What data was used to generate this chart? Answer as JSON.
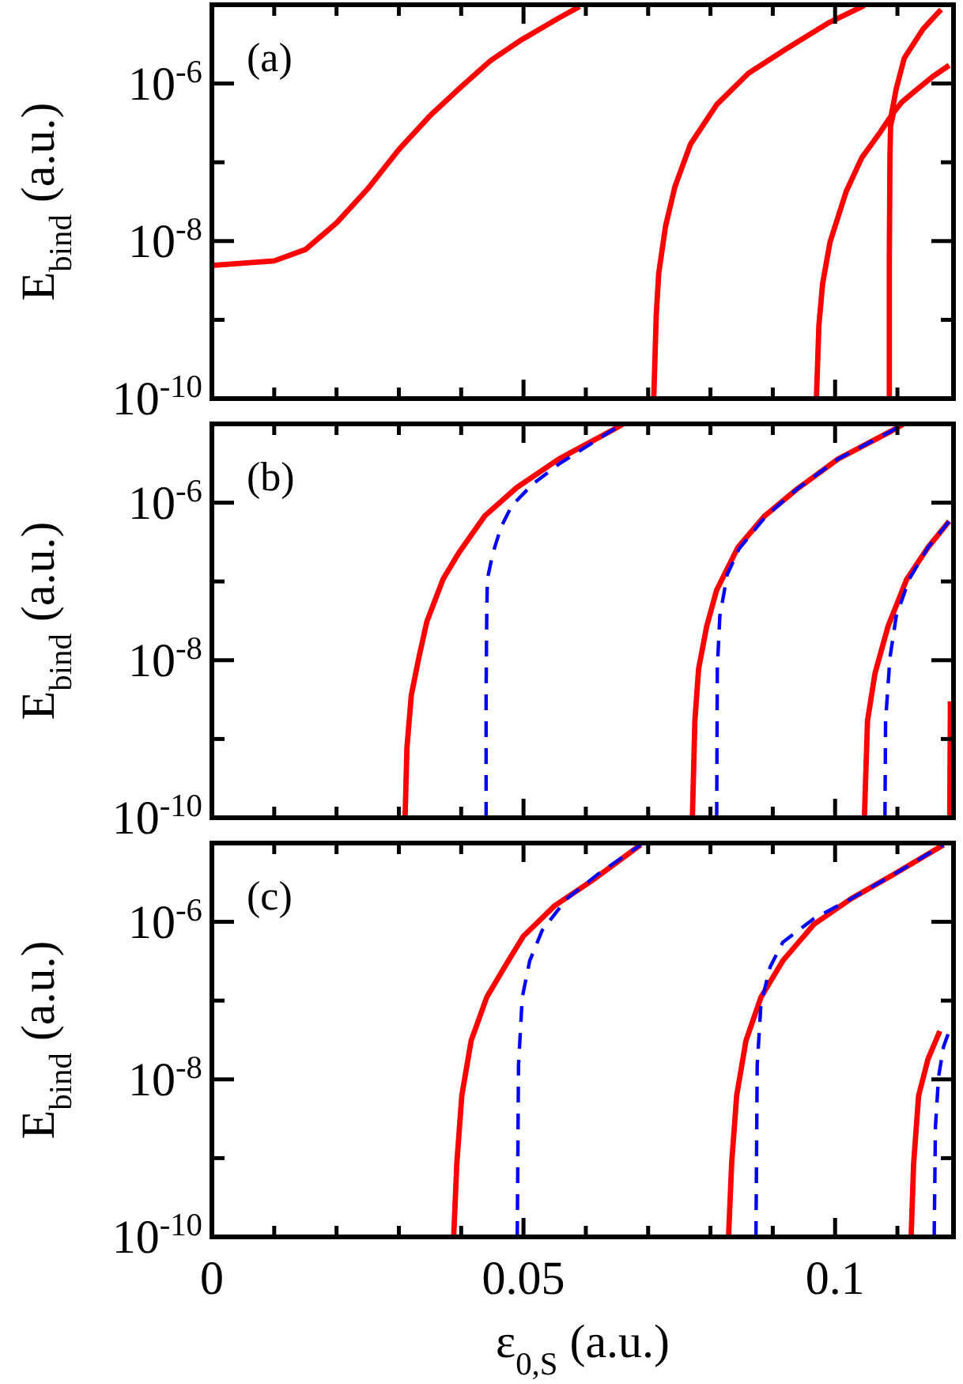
{
  "chart_data": [
    {
      "type": "line",
      "ylabel": "E$_{bind}$ (a.u.)",
      "annotations": [
        "(a)"
      ],
      "log": true,
      "tick_labels": "y",
      "xlim": [
        0,
        0.119
      ],
      "ylim": [
        1e-10,
        1e-05
      ],
      "xticks": [
        0,
        {
          "value": 0.01,
          "label": null
        },
        {
          "value": 0.02,
          "label": null
        },
        {
          "value": 0.03,
          "label": null
        },
        {
          "value": 0.04,
          "label": null
        },
        0.05,
        {
          "value": 0.06,
          "label": null
        },
        {
          "value": 0.07,
          "label": null
        },
        {
          "value": 0.08,
          "label": null
        },
        {
          "value": 0.09,
          "label": null
        },
        0.1,
        {
          "value": 0.11,
          "label": null
        }
      ],
      "yticks": [
        {
          "value": 1e-10,
          "label": "10$^{-10}$"
        },
        {
          "value": 1e-09,
          "label": null
        },
        {
          "value": 1e-08,
          "label": "10$^{-8}$"
        },
        {
          "value": 1e-07,
          "label": null
        },
        {
          "value": 1e-06,
          "label": "10$^{-6}$"
        },
        {
          "value": 1e-05,
          "label": null
        }
      ],
      "series": [
        {
          "color": "#ff0000",
          "line_style": "solid",
          "x": [
            0,
            0.01,
            0.015,
            0.02,
            0.025,
            0.03,
            0.035,
            0.04,
            0.0447,
            0.0497,
            0.0557,
            0.059
          ],
          "values": [
            4.9e-09,
            5.6e-09,
            7.8e-09,
            1.7e-08,
            4.6e-08,
            1.45e-07,
            3.9e-07,
            9.1e-07,
            1.95e-06,
            3.6e-06,
            6.8e-06,
            9.5e-06
          ]
        },
        {
          "color": "#ff0000",
          "line_style": "solid",
          "x": [
            0.0709,
            0.0713,
            0.0717,
            0.0728,
            0.0743,
            0.0768,
            0.081,
            0.0861,
            0.092,
            0.0988,
            0.1047
          ],
          "values": [
            1e-10,
            1.15e-09,
            3.9e-09,
            1.55e-08,
            4.9e-08,
            1.7e-07,
            5.4e-07,
            1.35e-06,
            2.7e-06,
            5.8e-06,
            9.8e-06
          ]
        },
        {
          "color": "#ff0000",
          "line_style": "solid",
          "x": [
            0.097,
            0.0974,
            0.098,
            0.0992,
            0.1018,
            0.1043,
            0.1073,
            0.109,
            0.1098,
            0.1111,
            0.1141,
            0.117
          ],
          "values": [
            1e-10,
            8.5e-10,
            2.9e-09,
            9.8e-09,
            4.3e-08,
            1.15e-07,
            2.45e-07,
            3.9e-07,
            8.5e-07,
            2.1e-06,
            4.9e-06,
            8.7e-06
          ]
        },
        {
          "color": "#ff0000",
          "line_style": "solid",
          "x": [
            0.1087,
            0.1087,
            0.1088,
            0.1089,
            0.1094,
            0.1107,
            0.1132,
            0.1157,
            0.1183
          ],
          "values": [
            1e-10,
            5.4e-09,
            1.15e-07,
            2.9e-07,
            4.3e-07,
            5.8e-07,
            8.5e-07,
            1.23e-06,
            1.7e-06
          ]
        }
      ]
    },
    {
      "type": "line",
      "ylabel": "E$_{bind}$ (a.u.)",
      "annotations": [
        "(b)"
      ],
      "log": true,
      "tick_labels": "y",
      "xlim": [
        0,
        0.119
      ],
      "ylim": [
        1e-10,
        1e-05
      ],
      "xticks": [
        0,
        {
          "value": 0.01,
          "label": null
        },
        {
          "value": 0.02,
          "label": null
        },
        {
          "value": 0.03,
          "label": null
        },
        {
          "value": 0.04,
          "label": null
        },
        0.05,
        {
          "value": 0.06,
          "label": null
        },
        {
          "value": 0.07,
          "label": null
        },
        {
          "value": 0.08,
          "label": null
        },
        {
          "value": 0.09,
          "label": null
        },
        0.1,
        {
          "value": 0.11,
          "label": null
        }
      ],
      "yticks": [
        {
          "value": 1e-10,
          "label": "10$^{-10}$"
        },
        {
          "value": 1e-09,
          "label": null
        },
        {
          "value": 1e-08,
          "label": "10$^{-8}$"
        },
        {
          "value": 1e-07,
          "label": null
        },
        {
          "value": 1e-06,
          "label": "10$^{-6}$"
        },
        {
          "value": 1e-05,
          "label": null
        }
      ],
      "series": [
        {
          "color": "#ff0000",
          "line_style": "solid",
          "x": [
            0.031,
            0.0313,
            0.032,
            0.0332,
            0.0345,
            0.0371,
            0.0396,
            0.0438,
            0.0489,
            0.0557,
            0.064,
            0.066
          ],
          "values": [
            1e-10,
            7.8e-10,
            3.6e-09,
            1.07e-08,
            3.1e-08,
            1.07e-07,
            2.3e-07,
            6.8e-07,
            1.55e-06,
            3.6e-06,
            8.1e-06,
            1e-05
          ]
        },
        {
          "color": "#0000ff",
          "line_style": "dashed",
          "x": [
            0.044,
            0.044,
            0.0441,
            0.0442,
            0.0451,
            0.0464,
            0.0481,
            0.0514,
            0.0557,
            0.064,
            0.066
          ],
          "values": [
            1e-10,
            3.6e-09,
            3.6e-08,
            1.07e-07,
            2.3e-07,
            4.9e-07,
            9.1e-07,
            1.7e-06,
            3.1e-06,
            8.1e-06,
            1e-05
          ]
        },
        {
          "color": "#ff0000",
          "line_style": "solid",
          "x": [
            0.0771,
            0.0775,
            0.0781,
            0.0794,
            0.081,
            0.0844,
            0.0887,
            0.0937,
            0.1005,
            0.109,
            0.111
          ],
          "values": [
            1e-10,
            1.7e-09,
            7.8e-09,
            2.7e-08,
            7.8e-08,
            2.7e-07,
            6.8e-07,
            1.45e-06,
            3.6e-06,
            8.1e-06,
            1e-05
          ]
        },
        {
          "color": "#0000ff",
          "line_style": "dashed",
          "x": [
            0.081,
            0.0811,
            0.0815,
            0.0827,
            0.0846,
            0.0888,
            0.0937,
            0.1005,
            0.109,
            0.111
          ],
          "values": [
            1e-10,
            7.8e-09,
            3.6e-08,
            1.23e-07,
            2.6e-07,
            6.6e-07,
            1.45e-06,
            3.6e-06,
            8.1e-06,
            1e-05
          ]
        },
        {
          "color": "#ff0000",
          "line_style": "solid",
          "x": [
            0.1047,
            0.1052,
            0.1064,
            0.1085,
            0.1115,
            0.1149,
            0.1183
          ],
          "values": [
            1e-10,
            1.7e-09,
            6.8e-09,
            2.7e-08,
            1.07e-07,
            2.7e-07,
            5.8e-07
          ]
        },
        {
          "color": "#0000ff",
          "line_style": "dashed",
          "x": [
            0.108,
            0.1081,
            0.1088,
            0.1098,
            0.1119,
            0.1149,
            0.1183
          ],
          "values": [
            1e-10,
            1.7e-09,
            1.07e-08,
            3.6e-08,
            1.07e-07,
            2.7e-07,
            5.8e-07
          ]
        },
        {
          "color": "#ff0000",
          "line_style": "solid",
          "x": [
            0.1184,
            0.1185
          ],
          "values": [
            1e-10,
            3e-09
          ]
        }
      ]
    },
    {
      "type": "line",
      "ylabel": "E$_{bind}$ (a.u.)",
      "xlabel": "ε$_{0,S}$ (a.u.)",
      "annotations": [
        "(c)"
      ],
      "log": true,
      "xlim": [
        0,
        0.119
      ],
      "ylim": [
        1e-10,
        1e-05
      ],
      "xticks": [
        0,
        {
          "value": 0.01,
          "label": null
        },
        {
          "value": 0.02,
          "label": null
        },
        {
          "value": 0.03,
          "label": null
        },
        {
          "value": 0.04,
          "label": null
        },
        0.05,
        {
          "value": 0.06,
          "label": null
        },
        {
          "value": 0.07,
          "label": null
        },
        {
          "value": 0.08,
          "label": null
        },
        {
          "value": 0.09,
          "label": null
        },
        0.1,
        {
          "value": 0.11,
          "label": null
        }
      ],
      "yticks": [
        {
          "value": 1e-10,
          "label": "10$^{-10}$"
        },
        {
          "value": 1e-09,
          "label": null
        },
        {
          "value": 1e-08,
          "label": "10$^{-8}$"
        },
        {
          "value": 1e-07,
          "label": null
        },
        {
          "value": 1e-06,
          "label": "10$^{-6}$"
        },
        {
          "value": 1e-05,
          "label": null
        }
      ],
      "series": [
        {
          "color": "#ff0000",
          "line_style": "solid",
          "x": [
            0.0388,
            0.0393,
            0.0401,
            0.0416,
            0.0441,
            0.047,
            0.05,
            0.055,
            0.0609,
            0.0688
          ],
          "values": [
            1e-10,
            8.5e-10,
            6.2e-09,
            3.1e-08,
            1.1e-07,
            2.7e-07,
            6.6e-07,
            1.6e-06,
            3.3e-06,
            9.5e-06
          ]
        },
        {
          "color": "#0000ff",
          "line_style": "dashed",
          "x": [
            0.049,
            0.0492,
            0.0498,
            0.051,
            0.053,
            0.0569,
            0.0619,
            0.0688
          ],
          "values": [
            1e-10,
            1.5e-08,
            1.1e-07,
            3.2e-07,
            7.8e-07,
            1.95e-06,
            4e-06,
            9.5e-06
          ]
        },
        {
          "color": "#ff0000",
          "line_style": "solid",
          "x": [
            0.0829,
            0.0834,
            0.0842,
            0.0857,
            0.0881,
            0.0916,
            0.0966,
            0.1025,
            0.1094,
            0.1174
          ],
          "values": [
            1e-10,
            8.5e-10,
            6.2e-09,
            3.1e-08,
            1.1e-07,
            3.2e-07,
            9.3e-07,
            1.95e-06,
            4e-06,
            9.5e-06
          ]
        },
        {
          "color": "#0000ff",
          "line_style": "dashed",
          "x": [
            0.0873,
            0.0875,
            0.0881,
            0.0896,
            0.0916,
            0.0966,
            0.1025,
            0.1094,
            0.1174
          ],
          "values": [
            1e-10,
            1.5e-08,
            9.1e-08,
            2.7e-07,
            5.5e-07,
            1.1e-06,
            1.95e-06,
            4e-06,
            9.5e-06
          ]
        },
        {
          "color": "#ff0000",
          "line_style": "solid",
          "x": [
            0.1122,
            0.1126,
            0.1134,
            0.1149,
            0.1168
          ],
          "values": [
            1e-10,
            8.5e-10,
            6.2e-09,
            1.8e-08,
            4.1e-08
          ]
        },
        {
          "color": "#0000ff",
          "line_style": "dashed",
          "x": [
            0.1159,
            0.1161,
            0.1166,
            0.1174,
            0.1183
          ],
          "values": [
            1e-10,
            2.5e-09,
            1.07e-08,
            2.6e-08,
            4.1e-08
          ]
        }
      ]
    }
  ]
}
